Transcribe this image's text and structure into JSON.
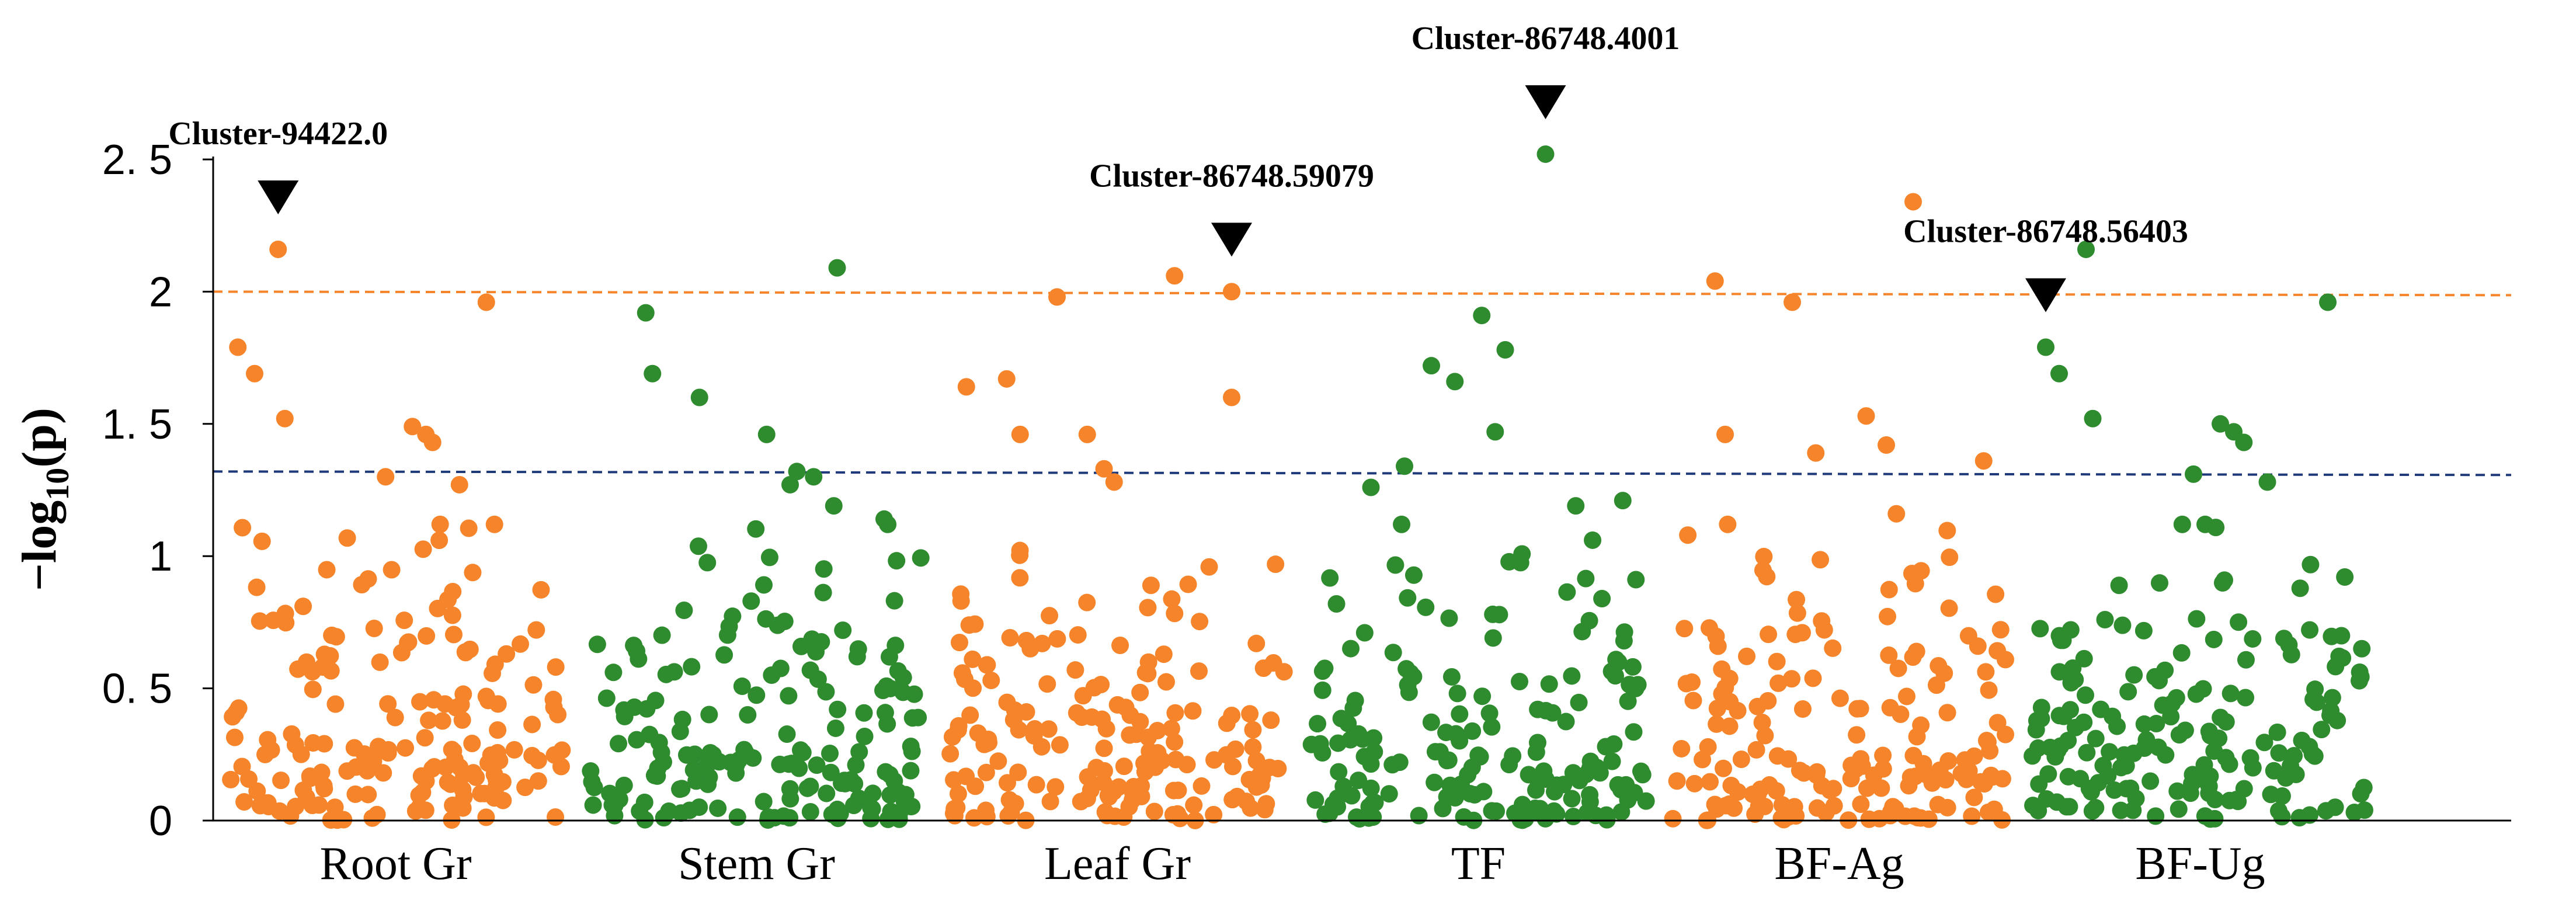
{
  "colors": {
    "orange": "#F5842A",
    "green": "#2E8B2E",
    "threshold_high": "#F5842A",
    "threshold_low": "#1F3A7A",
    "axis": "#000000"
  },
  "chart_data": {
    "type": "scatter",
    "title": "",
    "xlabel": "",
    "ylabel": {
      "prefix": "−log",
      "subscript": "10",
      "suffix": "(p)"
    },
    "ylim": [
      0,
      2.5
    ],
    "yticks": [
      {
        "value": 0,
        "label": "0"
      },
      {
        "value": 0.5,
        "label": "0. 5"
      },
      {
        "value": 1,
        "label": "1"
      },
      {
        "value": 1.5,
        "label": "1. 5"
      },
      {
        "value": 2,
        "label": "2"
      },
      {
        "value": 2.5,
        "label": "2. 5"
      }
    ],
    "grid": false,
    "thresholds": [
      {
        "value": 2.0,
        "color": "orange",
        "style": "dashed"
      },
      {
        "value": 1.32,
        "color": "navy",
        "style": "dashed"
      }
    ],
    "categories": [
      "Root Gr",
      "Stem Gr",
      "Leaf Gr",
      "TF",
      "BF-Ag",
      "BF-Ug"
    ],
    "category_colors": [
      "orange",
      "green",
      "orange",
      "green",
      "orange",
      "green"
    ],
    "points_per_category": 175,
    "series": [
      {
        "category": "Root Gr",
        "highlight": [
          {
            "x": 0.03,
            "y": 1.79
          },
          {
            "x": 0.08,
            "y": 1.69
          },
          {
            "x": 0.15,
            "y": 2.16
          },
          {
            "x": 0.17,
            "y": 1.52
          },
          {
            "x": 0.47,
            "y": 1.3
          },
          {
            "x": 0.55,
            "y": 1.49
          },
          {
            "x": 0.59,
            "y": 1.46
          },
          {
            "x": 0.61,
            "y": 1.43
          },
          {
            "x": 0.69,
            "y": 1.27
          },
          {
            "x": 0.77,
            "y": 1.96
          }
        ]
      },
      {
        "category": "Stem Gr",
        "highlight": [
          {
            "x": 0.17,
            "y": 1.92
          },
          {
            "x": 0.19,
            "y": 1.69
          },
          {
            "x": 0.33,
            "y": 1.6
          },
          {
            "x": 0.53,
            "y": 1.46
          },
          {
            "x": 0.6,
            "y": 1.27
          },
          {
            "x": 0.67,
            "y": 1.3
          },
          {
            "x": 0.73,
            "y": 1.19
          },
          {
            "x": 0.74,
            "y": 2.09
          },
          {
            "x": 0.62,
            "y": 1.32
          },
          {
            "x": 0.88,
            "y": 1.14
          }
        ]
      },
      {
        "category": "Leaf Gr",
        "highlight": [
          {
            "x": 0.05,
            "y": 1.64
          },
          {
            "x": 0.17,
            "y": 1.67
          },
          {
            "x": 0.21,
            "y": 1.46
          },
          {
            "x": 0.32,
            "y": 1.98
          },
          {
            "x": 0.41,
            "y": 1.46
          },
          {
            "x": 0.46,
            "y": 1.33
          },
          {
            "x": 0.49,
            "y": 1.28
          },
          {
            "x": 0.67,
            "y": 2.06
          },
          {
            "x": 0.84,
            "y": 2.0
          },
          {
            "x": 0.84,
            "y": 1.6
          }
        ]
      },
      {
        "category": "TF",
        "highlight": [
          {
            "x": 0.18,
            "y": 1.26
          },
          {
            "x": 0.28,
            "y": 1.34
          },
          {
            "x": 0.36,
            "y": 1.72
          },
          {
            "x": 0.43,
            "y": 1.66
          },
          {
            "x": 0.51,
            "y": 1.91
          },
          {
            "x": 0.55,
            "y": 1.47
          },
          {
            "x": 0.58,
            "y": 1.78
          },
          {
            "x": 0.7,
            "y": 2.52
          },
          {
            "x": 0.79,
            "y": 1.19
          },
          {
            "x": 0.93,
            "y": 1.21
          }
        ]
      },
      {
        "category": "BF-Ag",
        "highlight": [
          {
            "x": 0.13,
            "y": 2.04
          },
          {
            "x": 0.16,
            "y": 1.46
          },
          {
            "x": 0.36,
            "y": 1.96
          },
          {
            "x": 0.43,
            "y": 1.39
          },
          {
            "x": 0.58,
            "y": 1.53
          },
          {
            "x": 0.64,
            "y": 1.42
          },
          {
            "x": 0.72,
            "y": 2.34
          },
          {
            "x": 0.93,
            "y": 1.36
          },
          {
            "x": 0.67,
            "y": 1.16
          }
        ]
      },
      {
        "category": "BF-Ug",
        "highlight": [
          {
            "x": 0.04,
            "y": 1.79
          },
          {
            "x": 0.08,
            "y": 1.69
          },
          {
            "x": 0.16,
            "y": 2.16
          },
          {
            "x": 0.18,
            "y": 1.52
          },
          {
            "x": 0.48,
            "y": 1.31
          },
          {
            "x": 0.56,
            "y": 1.5
          },
          {
            "x": 0.6,
            "y": 1.47
          },
          {
            "x": 0.63,
            "y": 1.43
          },
          {
            "x": 0.7,
            "y": 1.28
          },
          {
            "x": 0.88,
            "y": 1.96
          }
        ]
      }
    ],
    "annotations": [
      {
        "label": "Cluster-94422.0",
        "category": "Root Gr",
        "x": 0.15,
        "y": 2.16
      },
      {
        "label": "Cluster-86748.59079",
        "category": "Leaf Gr",
        "x": 0.84,
        "y": 2.0
      },
      {
        "label": "Cluster-86748.4001",
        "category": "TF",
        "x": 0.7,
        "y": 2.52
      },
      {
        "label": "Cluster-86748.56403",
        "category": "BF-Ug",
        "x": 0.04,
        "y": 1.79
      }
    ]
  }
}
